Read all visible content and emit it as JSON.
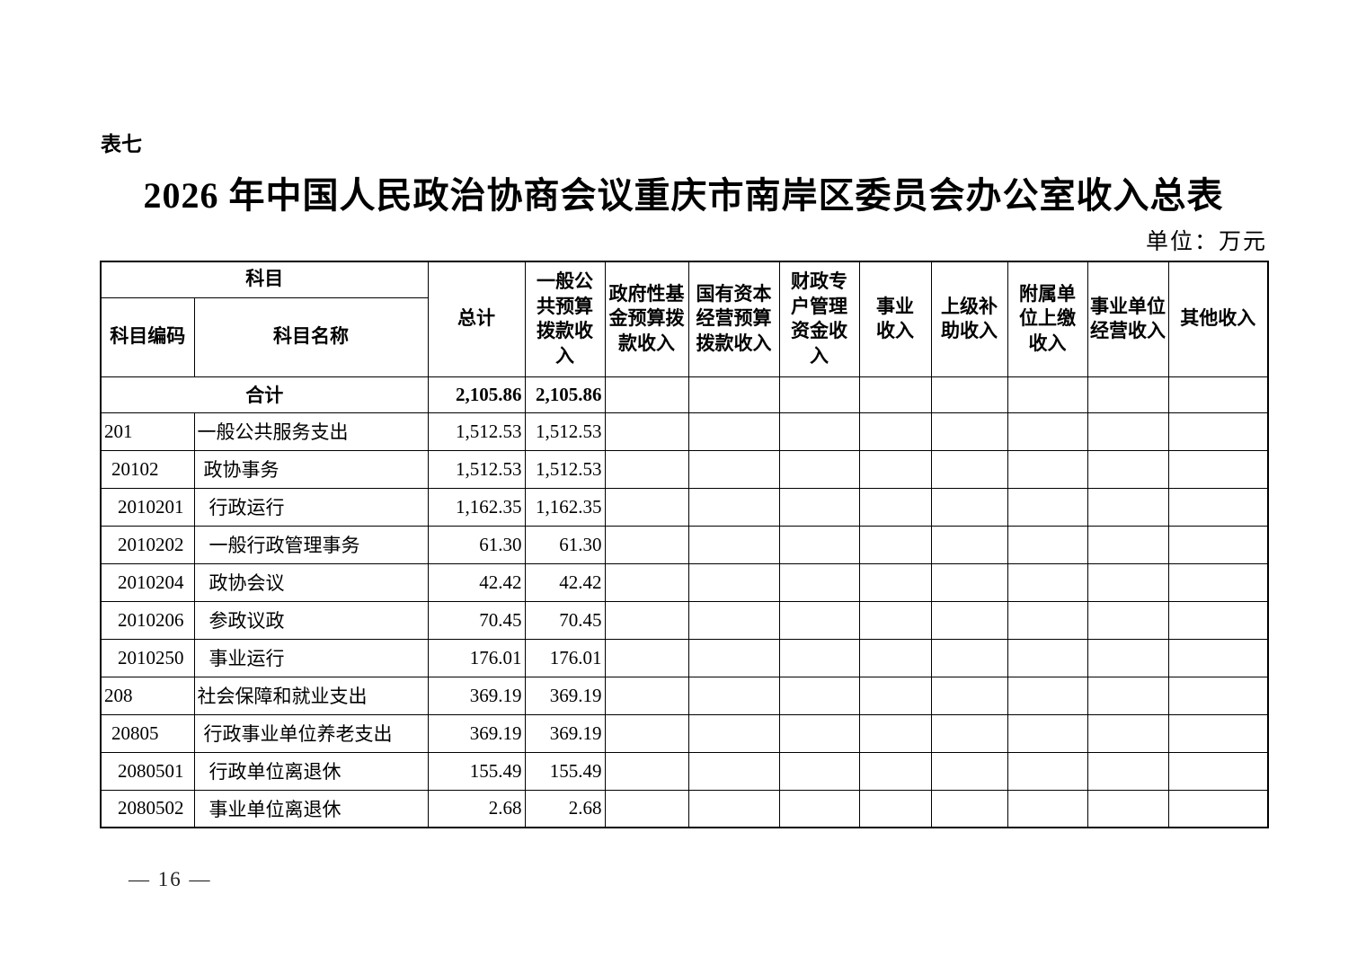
{
  "page": {
    "table_label": "表七",
    "title": "2026 年中国人民政治协商会议重庆市南岸区委员会办公室收入总表",
    "unit_note": "单位：万元",
    "page_number": "— 16 —"
  },
  "table": {
    "header": {
      "subject_group": "科目",
      "subject_code": "科目编码",
      "subject_name": "科目名称",
      "columns": [
        "总计",
        "一般公\n共预算\n拨款收\n入",
        "政府性基\n金预算拨\n款收入",
        "国有资本\n经营预算\n拨款收入",
        "财政专\n户管理\n资金收\n入",
        "事业\n收入",
        "上级补\n助收入",
        "附属单\n位上缴\n收入",
        "事业单位\n经营收入",
        "其他收入"
      ]
    },
    "total_row": {
      "label": "合计",
      "total": "2,105.86",
      "general_budget": "2,105.86"
    },
    "rows": [
      {
        "code": "201",
        "name": "一般公共服务支出",
        "level": 0,
        "total": "1,512.53",
        "general_budget": "1,512.53"
      },
      {
        "code": "20102",
        "name": "政协事务",
        "level": 1,
        "total": "1,512.53",
        "general_budget": "1,512.53"
      },
      {
        "code": "2010201",
        "name": "行政运行",
        "level": 2,
        "total": "1,162.35",
        "general_budget": "1,162.35"
      },
      {
        "code": "2010202",
        "name": "一般行政管理事务",
        "level": 2,
        "total": "61.30",
        "general_budget": "61.30"
      },
      {
        "code": "2010204",
        "name": "政协会议",
        "level": 2,
        "total": "42.42",
        "general_budget": "42.42"
      },
      {
        "code": "2010206",
        "name": "参政议政",
        "level": 2,
        "total": "70.45",
        "general_budget": "70.45"
      },
      {
        "code": "2010250",
        "name": "事业运行",
        "level": 2,
        "total": "176.01",
        "general_budget": "176.01"
      },
      {
        "code": "208",
        "name": "社会保障和就业支出",
        "level": 0,
        "total": "369.19",
        "general_budget": "369.19"
      },
      {
        "code": "20805",
        "name": "行政事业单位养老支出",
        "level": 1,
        "total": "369.19",
        "general_budget": "369.19"
      },
      {
        "code": "2080501",
        "name": "行政单位离退休",
        "level": 2,
        "total": "155.49",
        "general_budget": "155.49"
      },
      {
        "code": "2080502",
        "name": "事业单位离退休",
        "level": 2,
        "total": "2.68",
        "general_budget": "2.68"
      }
    ]
  }
}
